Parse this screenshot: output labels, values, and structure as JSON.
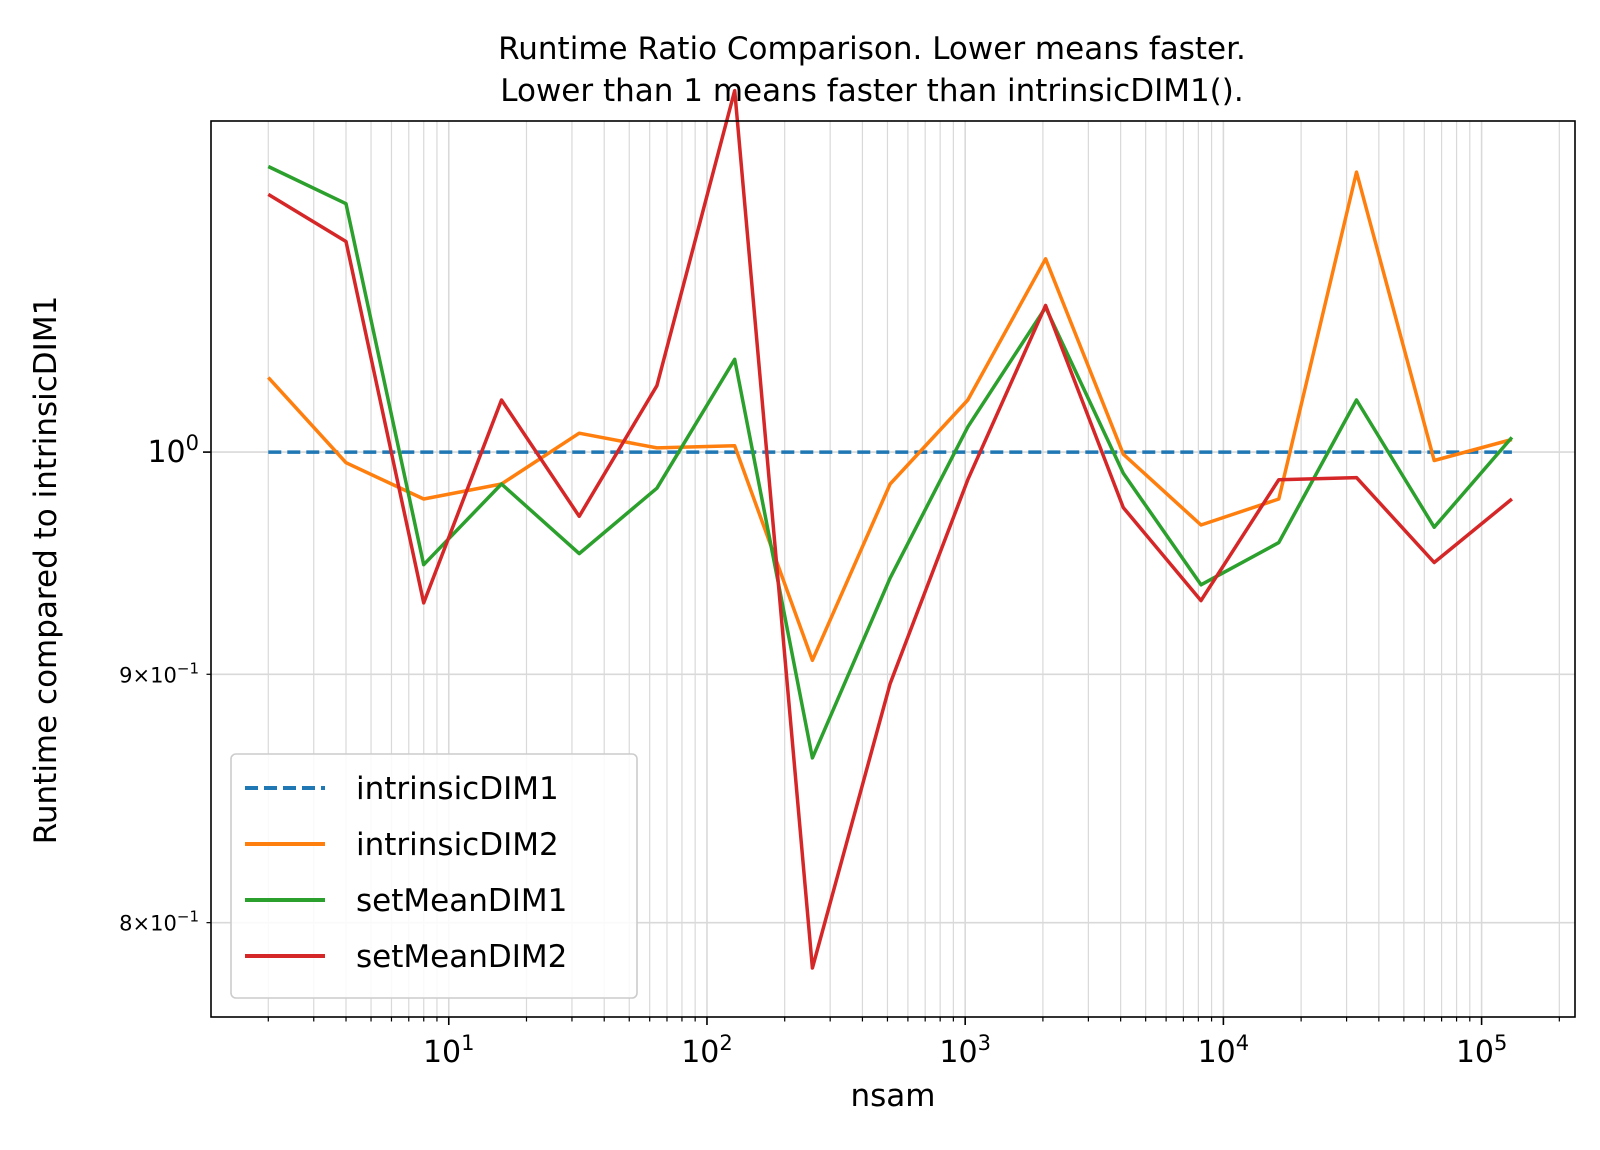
{
  "chart_data": {
    "type": "line",
    "title": [
      "Runtime Ratio Comparison. Lower means faster.",
      "Lower than 1 means faster than intrinsicDIM1()."
    ],
    "xlabel": "nsam",
    "ylabel": "Runtime compared to intrinsicDIM1",
    "xscale": "log",
    "yscale": "log",
    "xlim": [
      1.2,
      230000
    ],
    "ylim": [
      0.765,
      1.17
    ],
    "x": [
      2,
      4,
      8,
      16,
      32,
      64,
      128,
      256,
      512,
      1024,
      2048,
      4096,
      8192,
      16384,
      32768,
      65536,
      131072
    ],
    "x_major_ticks": [
      {
        "value": 10,
        "base": "10",
        "exp": "1"
      },
      {
        "value": 100,
        "base": "10",
        "exp": "2"
      },
      {
        "value": 1000,
        "base": "10",
        "exp": "3"
      },
      {
        "value": 10000,
        "base": "10",
        "exp": "4"
      },
      {
        "value": 100000,
        "base": "10",
        "exp": "5"
      }
    ],
    "y_ticks": [
      {
        "value": 1.0,
        "kind": "major",
        "base": "10",
        "exp": "0"
      },
      {
        "value": 0.9,
        "kind": "minor",
        "mant": "9",
        "base": "10",
        "exp": "−1"
      },
      {
        "value": 0.8,
        "kind": "minor",
        "mant": "8",
        "base": "10",
        "exp": "−1"
      }
    ],
    "grid": true,
    "legend_position": "lower-left",
    "series": [
      {
        "name": "intrinsicDIM1",
        "color": "#1f77b4",
        "dashed": true,
        "values": [
          1.0,
          1.0,
          1.0,
          1.0,
          1.0,
          1.0,
          1.0,
          1.0,
          1.0,
          1.0,
          1.0,
          1.0,
          1.0,
          1.0,
          1.0,
          1.0,
          1.0
        ]
      },
      {
        "name": "intrinsicDIM2",
        "color": "#ff7f0e",
        "dashed": false,
        "values": [
          1.036,
          0.995,
          0.978,
          0.985,
          1.009,
          1.002,
          1.003,
          0.906,
          0.985,
          1.025,
          1.096,
          0.999,
          0.966,
          0.978,
          1.142,
          0.996,
          1.006
        ]
      },
      {
        "name": "setMeanDIM1",
        "color": "#2ca02c",
        "dashed": false,
        "values": [
          1.145,
          1.125,
          0.948,
          0.985,
          0.953,
          0.983,
          1.045,
          0.865,
          0.942,
          1.012,
          1.071,
          0.99,
          0.939,
          0.958,
          1.025,
          0.965,
          1.007
        ]
      },
      {
        "name": "setMeanDIM2",
        "color": "#d62728",
        "dashed": false,
        "values": [
          1.13,
          1.105,
          0.931,
          1.025,
          0.97,
          1.032,
          1.187,
          0.783,
          0.896,
          0.987,
          1.072,
          0.974,
          0.932,
          0.987,
          0.988,
          0.949,
          0.978
        ]
      }
    ]
  }
}
